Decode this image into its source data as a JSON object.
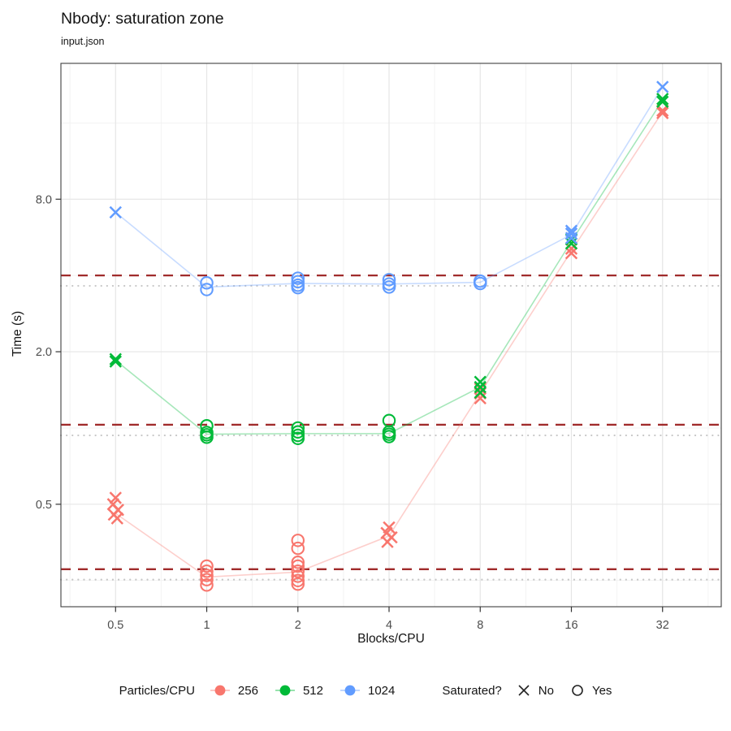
{
  "chart_data": {
    "type": "scatter",
    "title": "Nbody: saturation zone",
    "subtitle": "input.json",
    "xlabel": "Blocks/CPU",
    "ylabel": "Time (s)",
    "x_scale": "log2",
    "y_scale": "log10",
    "x_ticks": [
      "0.5",
      "1",
      "2",
      "4",
      "8",
      "16",
      "32"
    ],
    "x_tick_values": [
      0.5,
      1,
      2,
      4,
      8,
      16,
      32
    ],
    "y_ticks": [
      "0.5",
      "2.0",
      "8.0"
    ],
    "y_tick_values": [
      0.5,
      2.0,
      8.0
    ],
    "xlim": [
      0.33,
      50
    ],
    "ylim": [
      0.197,
      27.5
    ],
    "grid": true,
    "legend_position": "bottom",
    "series": [
      {
        "name": "256",
        "color": "#F8766D",
        "clusters": [
          {
            "x": 0.5,
            "saturated": false,
            "values": [
              0.53,
              0.5,
              0.475,
              0.455,
              0.44
            ]
          },
          {
            "x": 1,
            "saturated": true,
            "values": [
              0.285,
              0.272,
              0.262,
              0.252,
              0.24
            ]
          },
          {
            "x": 2,
            "saturated": true,
            "values": [
              0.36,
              0.335,
              0.295,
              0.285,
              0.272,
              0.26,
              0.25,
              0.242
            ]
          },
          {
            "x": 4,
            "saturated": false,
            "values": [
              0.405,
              0.385,
              0.37,
              0.355
            ]
          },
          {
            "x": 8,
            "saturated": false,
            "values": [
              1.43,
              1.37,
              1.31
            ]
          },
          {
            "x": 16,
            "saturated": false,
            "values": [
              5.1,
              4.9
            ]
          },
          {
            "x": 32,
            "saturated": false,
            "values": [
              17.9,
              17.5
            ]
          }
        ],
        "line": [
          [
            0.5,
            0.46
          ],
          [
            1,
            0.258
          ],
          [
            2,
            0.27
          ],
          [
            4,
            0.375
          ],
          [
            8,
            1.37
          ],
          [
            16,
            5.0
          ],
          [
            32,
            17.7
          ]
        ]
      },
      {
        "name": "512",
        "color": "#00BA38",
        "clusters": [
          {
            "x": 0.5,
            "saturated": false,
            "values": [
              1.87,
              1.83
            ]
          },
          {
            "x": 1,
            "saturated": true,
            "values": [
              1.02,
              0.96,
              0.94,
              0.92
            ]
          },
          {
            "x": 2,
            "saturated": true,
            "values": [
              1.0,
              0.965,
              0.935,
              0.91
            ]
          },
          {
            "x": 4,
            "saturated": true,
            "values": [
              1.07,
              0.965,
              0.945,
              0.925
            ]
          },
          {
            "x": 8,
            "saturated": false,
            "values": [
              1.52,
              1.45,
              1.38
            ]
          },
          {
            "x": 16,
            "saturated": false,
            "values": [
              5.55,
              5.35
            ]
          },
          {
            "x": 32,
            "saturated": false,
            "values": [
              19.9,
              19.4
            ]
          }
        ],
        "line": [
          [
            0.5,
            1.85
          ],
          [
            1,
            0.945
          ],
          [
            2,
            0.95
          ],
          [
            4,
            0.95
          ],
          [
            8,
            1.45
          ],
          [
            16,
            5.45
          ],
          [
            32,
            19.65
          ]
        ]
      },
      {
        "name": "1024",
        "color": "#619CFF",
        "clusters": [
          {
            "x": 0.5,
            "saturated": false,
            "values": [
              7.1
            ]
          },
          {
            "x": 1,
            "saturated": true,
            "values": [
              3.74,
              3.52
            ]
          },
          {
            "x": 2,
            "saturated": true,
            "values": [
              3.9,
              3.78,
              3.66,
              3.58
            ]
          },
          {
            "x": 4,
            "saturated": true,
            "values": [
              3.85,
              3.7,
              3.6
            ]
          },
          {
            "x": 8,
            "saturated": true,
            "values": [
              3.8,
              3.72
            ]
          },
          {
            "x": 16,
            "saturated": false,
            "values": [
              6.0,
              5.85,
              5.62
            ]
          },
          {
            "x": 32,
            "saturated": false,
            "values": [
              22.2
            ]
          }
        ],
        "line": [
          [
            0.5,
            7.1
          ],
          [
            1,
            3.6
          ],
          [
            2,
            3.72
          ],
          [
            4,
            3.7
          ],
          [
            8,
            3.76
          ],
          [
            16,
            5.8
          ],
          [
            32,
            22.2
          ]
        ]
      }
    ],
    "ref_lines": {
      "dashed": {
        "style": "dashed",
        "color": "#A02B2B",
        "values": [
          4.0,
          1.03,
          0.277
        ]
      },
      "dotted": {
        "style": "dotted",
        "color": "#C6C6C6",
        "values": [
          3.64,
          0.935,
          0.252
        ]
      }
    }
  },
  "legend": {
    "color": {
      "title": "Particles/CPU",
      "items": [
        {
          "label": "256",
          "color": "#F8766D"
        },
        {
          "label": "512",
          "color": "#00BA38"
        },
        {
          "label": "1024",
          "color": "#619CFF"
        }
      ]
    },
    "shape": {
      "title": "Saturated?",
      "items": [
        {
          "label": "No",
          "shape": "x"
        },
        {
          "label": "Yes",
          "shape": "circle"
        }
      ]
    }
  },
  "colors": {
    "grid_major": "#e6e6e6",
    "grid_minor": "#f2f2f2",
    "panel_border": "#3f3f3f",
    "tick_label": "#4d4d4d"
  }
}
